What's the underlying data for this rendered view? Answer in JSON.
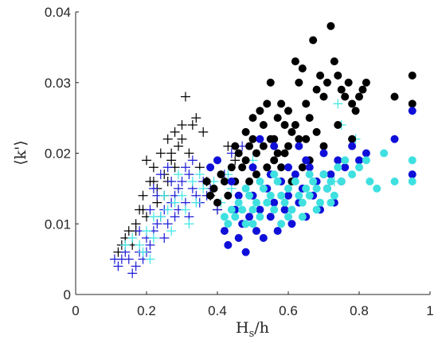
{
  "chart_data": {
    "type": "scatter",
    "title": "",
    "xlabel_main": "H",
    "xlabel_sub": "s",
    "xlabel_tail": "/h",
    "ylabel": "⟨k'⟩",
    "xlim": [
      0,
      1
    ],
    "ylim": [
      0,
      0.04
    ],
    "xticks": [
      0,
      0.2,
      0.4,
      0.6,
      0.8,
      1
    ],
    "xtick_labels": [
      "0",
      "0.2",
      "0.4",
      "0.6",
      "0.8",
      "1"
    ],
    "yticks": [
      0,
      0.01,
      0.02,
      0.03,
      0.04
    ],
    "ytick_labels": [
      "0",
      "0.01",
      "0.02",
      "0.03",
      "0.04"
    ],
    "grid": false,
    "series": [
      {
        "marker": "plus",
        "color": "#000000",
        "points": [
          [
            0.12,
            0.006
          ],
          [
            0.13,
            0.007
          ],
          [
            0.14,
            0.008
          ],
          [
            0.15,
            0.009
          ],
          [
            0.16,
            0.007
          ],
          [
            0.17,
            0.01
          ],
          [
            0.18,
            0.012
          ],
          [
            0.19,
            0.014
          ],
          [
            0.2,
            0.011
          ],
          [
            0.21,
            0.016
          ],
          [
            0.22,
            0.018
          ],
          [
            0.23,
            0.013
          ],
          [
            0.24,
            0.02
          ],
          [
            0.25,
            0.017
          ],
          [
            0.26,
            0.022
          ],
          [
            0.27,
            0.019
          ],
          [
            0.28,
            0.023
          ],
          [
            0.29,
            0.021
          ],
          [
            0.3,
            0.024
          ],
          [
            0.31,
            0.028
          ],
          [
            0.32,
            0.02
          ],
          [
            0.33,
            0.024
          ],
          [
            0.34,
            0.025
          ],
          [
            0.35,
            0.018
          ],
          [
            0.36,
            0.023
          ],
          [
            0.37,
            0.016
          ],
          [
            0.2,
            0.019
          ],
          [
            0.22,
            0.016
          ],
          [
            0.25,
            0.014
          ],
          [
            0.27,
            0.02
          ],
          [
            0.3,
            0.022
          ],
          [
            0.28,
            0.018
          ],
          [
            0.26,
            0.016
          ],
          [
            0.23,
            0.015
          ],
          [
            0.19,
            0.012
          ],
          [
            0.17,
            0.009
          ],
          [
            0.38,
            0.014
          ],
          [
            0.4,
            0.012
          ],
          [
            0.43,
            0.021
          ],
          [
            0.45,
            0.019
          ]
        ]
      },
      {
        "marker": "plus",
        "color": "#1a1ad6",
        "points": [
          [
            0.11,
            0.005
          ],
          [
            0.12,
            0.004
          ],
          [
            0.13,
            0.005
          ],
          [
            0.14,
            0.006
          ],
          [
            0.15,
            0.005
          ],
          [
            0.16,
            0.003
          ],
          [
            0.17,
            0.004
          ],
          [
            0.18,
            0.006
          ],
          [
            0.19,
            0.005
          ],
          [
            0.2,
            0.008
          ],
          [
            0.21,
            0.007
          ],
          [
            0.22,
            0.009
          ],
          [
            0.23,
            0.01
          ],
          [
            0.24,
            0.011
          ],
          [
            0.25,
            0.012
          ],
          [
            0.26,
            0.01
          ],
          [
            0.27,
            0.013
          ],
          [
            0.28,
            0.014
          ],
          [
            0.29,
            0.015
          ],
          [
            0.3,
            0.016
          ],
          [
            0.31,
            0.018
          ],
          [
            0.32,
            0.017
          ],
          [
            0.33,
            0.015
          ],
          [
            0.34,
            0.014
          ],
          [
            0.35,
            0.013
          ],
          [
            0.36,
            0.016
          ],
          [
            0.37,
            0.014
          ],
          [
            0.38,
            0.015
          ],
          [
            0.21,
            0.012
          ],
          [
            0.22,
            0.015
          ],
          [
            0.24,
            0.017
          ],
          [
            0.26,
            0.018
          ],
          [
            0.27,
            0.016
          ],
          [
            0.29,
            0.012
          ],
          [
            0.31,
            0.013
          ],
          [
            0.32,
            0.011
          ],
          [
            0.25,
            0.008
          ],
          [
            0.2,
            0.006
          ],
          [
            0.18,
            0.009
          ],
          [
            0.23,
            0.014
          ],
          [
            0.28,
            0.011
          ],
          [
            0.33,
            0.019
          ],
          [
            0.44,
            0.02
          ],
          [
            0.47,
            0.021
          ],
          [
            0.42,
            0.017
          ],
          [
            0.4,
            0.012
          ]
        ]
      },
      {
        "marker": "plus",
        "color": "#3fe6e6",
        "points": [
          [
            0.14,
            0.007
          ],
          [
            0.16,
            0.008
          ],
          [
            0.18,
            0.007
          ],
          [
            0.2,
            0.009
          ],
          [
            0.22,
            0.008
          ],
          [
            0.24,
            0.011
          ],
          [
            0.26,
            0.012
          ],
          [
            0.27,
            0.009
          ],
          [
            0.28,
            0.013
          ],
          [
            0.3,
            0.014
          ],
          [
            0.31,
            0.012
          ],
          [
            0.33,
            0.016
          ],
          [
            0.34,
            0.013
          ],
          [
            0.36,
            0.015
          ],
          [
            0.22,
            0.011
          ],
          [
            0.25,
            0.014
          ],
          [
            0.29,
            0.017
          ],
          [
            0.35,
            0.017
          ],
          [
            0.39,
            0.016
          ],
          [
            0.41,
            0.013
          ],
          [
            0.43,
            0.017
          ],
          [
            0.44,
            0.015
          ],
          [
            0.73,
            0.016
          ],
          [
            0.74,
            0.027
          ],
          [
            0.75,
            0.024
          ],
          [
            0.79,
            0.022
          ],
          [
            0.21,
            0.005
          ],
          [
            0.19,
            0.006
          ],
          [
            0.32,
            0.01
          ],
          [
            0.5,
            0.019
          ]
        ]
      },
      {
        "marker": "circle",
        "color": "#000000",
        "points": [
          [
            0.37,
            0.016
          ],
          [
            0.38,
            0.014
          ],
          [
            0.39,
            0.015
          ],
          [
            0.4,
            0.013
          ],
          [
            0.41,
            0.017
          ],
          [
            0.42,
            0.016
          ],
          [
            0.43,
            0.014
          ],
          [
            0.44,
            0.018
          ],
          [
            0.45,
            0.016
          ],
          [
            0.46,
            0.02
          ],
          [
            0.47,
            0.018
          ],
          [
            0.48,
            0.019
          ],
          [
            0.49,
            0.021
          ],
          [
            0.5,
            0.022
          ],
          [
            0.51,
            0.02
          ],
          [
            0.52,
            0.026
          ],
          [
            0.53,
            0.024
          ],
          [
            0.54,
            0.027
          ],
          [
            0.55,
            0.03
          ],
          [
            0.56,
            0.022
          ],
          [
            0.57,
            0.025
          ],
          [
            0.58,
            0.027
          ],
          [
            0.59,
            0.024
          ],
          [
            0.6,
            0.026
          ],
          [
            0.61,
            0.023
          ],
          [
            0.62,
            0.033
          ],
          [
            0.63,
            0.03
          ],
          [
            0.64,
            0.032
          ],
          [
            0.65,
            0.027
          ],
          [
            0.66,
            0.025
          ],
          [
            0.67,
            0.036
          ],
          [
            0.68,
            0.029
          ],
          [
            0.69,
            0.031
          ],
          [
            0.7,
            0.028
          ],
          [
            0.71,
            0.03
          ],
          [
            0.72,
            0.038
          ],
          [
            0.73,
            0.033
          ],
          [
            0.74,
            0.031
          ],
          [
            0.75,
            0.029
          ],
          [
            0.76,
            0.028
          ],
          [
            0.77,
            0.03
          ],
          [
            0.78,
            0.027
          ],
          [
            0.79,
            0.026
          ],
          [
            0.8,
            0.028
          ],
          [
            0.81,
            0.029
          ],
          [
            0.82,
            0.03
          ],
          [
            0.9,
            0.028
          ],
          [
            0.95,
            0.031
          ],
          [
            0.95,
            0.027
          ],
          [
            0.5,
            0.025
          ],
          [
            0.53,
            0.021
          ],
          [
            0.55,
            0.022
          ],
          [
            0.57,
            0.02
          ],
          [
            0.6,
            0.021
          ],
          [
            0.62,
            0.024
          ],
          [
            0.63,
            0.022
          ],
          [
            0.65,
            0.022
          ],
          [
            0.48,
            0.023
          ],
          [
            0.45,
            0.021
          ],
          [
            0.58,
            0.018
          ],
          [
            0.61,
            0.016
          ],
          [
            0.66,
            0.019
          ],
          [
            0.7,
            0.021
          ],
          [
            0.74,
            0.024
          ],
          [
            0.78,
            0.022
          ],
          [
            0.51,
            0.017
          ],
          [
            0.54,
            0.018
          ],
          [
            0.56,
            0.019
          ],
          [
            0.49,
            0.016
          ],
          [
            0.59,
            0.02
          ],
          [
            0.64,
            0.018
          ],
          [
            0.68,
            0.023
          ]
        ]
      },
      {
        "marker": "circle",
        "color": "#0f0fd9",
        "points": [
          [
            0.38,
            0.018
          ],
          [
            0.4,
            0.019
          ],
          [
            0.42,
            0.009
          ],
          [
            0.43,
            0.007
          ],
          [
            0.45,
            0.012
          ],
          [
            0.46,
            0.008
          ],
          [
            0.47,
            0.01
          ],
          [
            0.48,
            0.006
          ],
          [
            0.49,
            0.011
          ],
          [
            0.5,
            0.014
          ],
          [
            0.51,
            0.009
          ],
          [
            0.52,
            0.012
          ],
          [
            0.53,
            0.008
          ],
          [
            0.54,
            0.015
          ],
          [
            0.55,
            0.011
          ],
          [
            0.56,
            0.013
          ],
          [
            0.57,
            0.009
          ],
          [
            0.58,
            0.016
          ],
          [
            0.59,
            0.012
          ],
          [
            0.6,
            0.014
          ],
          [
            0.61,
            0.01
          ],
          [
            0.62,
            0.017
          ],
          [
            0.63,
            0.013
          ],
          [
            0.64,
            0.015
          ],
          [
            0.65,
            0.011
          ],
          [
            0.66,
            0.018
          ],
          [
            0.67,
            0.014
          ],
          [
            0.68,
            0.016
          ],
          [
            0.69,
            0.012
          ],
          [
            0.7,
            0.02
          ],
          [
            0.71,
            0.015
          ],
          [
            0.72,
            0.017
          ],
          [
            0.73,
            0.013
          ],
          [
            0.74,
            0.019
          ],
          [
            0.75,
            0.016
          ],
          [
            0.76,
            0.018
          ],
          [
            0.78,
            0.021
          ],
          [
            0.8,
            0.019
          ],
          [
            0.82,
            0.02
          ],
          [
            0.9,
            0.022
          ],
          [
            0.95,
            0.026
          ],
          [
            0.95,
            0.017
          ],
          [
            0.44,
            0.016
          ],
          [
            0.46,
            0.014
          ],
          [
            0.5,
            0.018
          ],
          [
            0.55,
            0.017
          ],
          [
            0.6,
            0.018
          ],
          [
            0.65,
            0.019
          ],
          [
            0.7,
            0.017
          ],
          [
            0.52,
            0.022
          ],
          [
            0.56,
            0.021
          ],
          [
            0.63,
            0.021
          ]
        ]
      },
      {
        "marker": "circle",
        "color": "#3fe0e0",
        "points": [
          [
            0.42,
            0.011
          ],
          [
            0.43,
            0.01
          ],
          [
            0.44,
            0.012
          ],
          [
            0.45,
            0.011
          ],
          [
            0.46,
            0.013
          ],
          [
            0.47,
            0.012
          ],
          [
            0.48,
            0.01
          ],
          [
            0.49,
            0.014
          ],
          [
            0.5,
            0.012
          ],
          [
            0.51,
            0.013
          ],
          [
            0.52,
            0.011
          ],
          [
            0.53,
            0.015
          ],
          [
            0.54,
            0.013
          ],
          [
            0.55,
            0.014
          ],
          [
            0.56,
            0.012
          ],
          [
            0.57,
            0.016
          ],
          [
            0.58,
            0.014
          ],
          [
            0.59,
            0.013
          ],
          [
            0.6,
            0.015
          ],
          [
            0.61,
            0.012
          ],
          [
            0.62,
            0.016
          ],
          [
            0.63,
            0.014
          ],
          [
            0.64,
            0.013
          ],
          [
            0.65,
            0.015
          ],
          [
            0.66,
            0.014
          ],
          [
            0.67,
            0.016
          ],
          [
            0.68,
            0.015
          ],
          [
            0.69,
            0.013
          ],
          [
            0.7,
            0.017
          ],
          [
            0.71,
            0.015
          ],
          [
            0.72,
            0.016
          ],
          [
            0.73,
            0.014
          ],
          [
            0.74,
            0.018
          ],
          [
            0.75,
            0.016
          ],
          [
            0.76,
            0.019
          ],
          [
            0.78,
            0.017
          ],
          [
            0.8,
            0.018
          ],
          [
            0.82,
            0.019
          ],
          [
            0.83,
            0.016
          ],
          [
            0.85,
            0.015
          ],
          [
            0.87,
            0.02
          ],
          [
            0.9,
            0.016
          ],
          [
            0.95,
            0.019
          ],
          [
            0.95,
            0.016
          ],
          [
            0.48,
            0.015
          ],
          [
            0.52,
            0.016
          ],
          [
            0.56,
            0.017
          ],
          [
            0.6,
            0.011
          ],
          [
            0.64,
            0.011
          ],
          [
            0.68,
            0.012
          ],
          [
            0.72,
            0.013
          ],
          [
            0.5,
            0.01
          ],
          [
            0.58,
            0.01
          ],
          [
            0.66,
            0.017
          ]
        ]
      }
    ]
  }
}
